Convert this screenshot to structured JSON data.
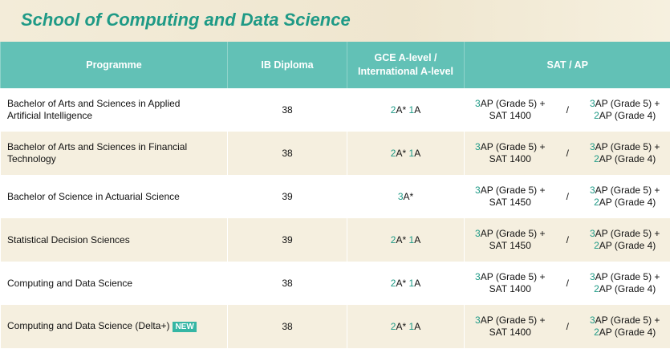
{
  "header": {
    "title": "School of Computing and Data Science"
  },
  "table": {
    "columns": [
      "Programme",
      "IB Diploma",
      "GCE A-level / International A-level",
      "SAT / AP"
    ],
    "rows": [
      {
        "programme": "Bachelor of Arts and Sciences in Applied Artificial Intelligence",
        "ib": "38",
        "gce": [
          {
            "n": "2",
            "g": "A*"
          },
          {
            "n": "1",
            "g": "A"
          }
        ],
        "sat": {
          "left": {
            "n": "3",
            "a": "AP (Grade 5) +",
            "b": "SAT 1400"
          },
          "sep": "/",
          "right": {
            "n1": "3",
            "a": "AP (Grade 5) +",
            "n2": "2",
            "b": "AP (Grade 4)"
          }
        }
      },
      {
        "programme": "Bachelor of Arts and Sciences in Financial Technology",
        "ib": "38",
        "gce": [
          {
            "n": "2",
            "g": "A*"
          },
          {
            "n": "1",
            "g": "A"
          }
        ],
        "sat": {
          "left": {
            "n": "3",
            "a": "AP (Grade 5) +",
            "b": "SAT 1400"
          },
          "sep": "/",
          "right": {
            "n1": "3",
            "a": "AP (Grade 5) +",
            "n2": "2",
            "b": "AP (Grade 4)"
          }
        }
      },
      {
        "programme": "Bachelor of Science in Actuarial Science",
        "ib": "39",
        "gce": [
          {
            "n": "3",
            "g": "A*"
          }
        ],
        "sat": {
          "left": {
            "n": "3",
            "a": "AP (Grade 5) +",
            "b": "SAT 1450"
          },
          "sep": "/",
          "right": {
            "n1": "3",
            "a": "AP (Grade 5) +",
            "n2": "2",
            "b": "AP (Grade 4)"
          }
        }
      },
      {
        "programme": "Statistical Decision Sciences",
        "ib": "39",
        "gce": [
          {
            "n": "2",
            "g": "A*"
          },
          {
            "n": "1",
            "g": "A"
          }
        ],
        "sat": {
          "left": {
            "n": "3",
            "a": "AP (Grade 5) +",
            "b": "SAT 1450"
          },
          "sep": "/",
          "right": {
            "n1": "3",
            "a": "AP (Grade 5) +",
            "n2": "2",
            "b": "AP (Grade 4)"
          }
        }
      },
      {
        "programme": "Computing and Data Science",
        "ib": "38",
        "gce": [
          {
            "n": "2",
            "g": "A*"
          },
          {
            "n": "1",
            "g": "A"
          }
        ],
        "sat": {
          "left": {
            "n": "3",
            "a": "AP (Grade 5) +",
            "b": "SAT 1400"
          },
          "sep": "/",
          "right": {
            "n1": "3",
            "a": "AP (Grade 5) +",
            "n2": "2",
            "b": "AP (Grade 4)"
          }
        }
      },
      {
        "programme": "Computing and Data Science (Delta+)",
        "badge": "NEW",
        "ib": "38",
        "gce": [
          {
            "n": "2",
            "g": "A*"
          },
          {
            "n": "1",
            "g": "A"
          }
        ],
        "sat": {
          "left": {
            "n": "3",
            "a": "AP (Grade 5) +",
            "b": "SAT 1400"
          },
          "sep": "/",
          "right": {
            "n1": "3",
            "a": "AP (Grade 5) +",
            "n2": "2",
            "b": "AP (Grade 4)"
          }
        }
      }
    ]
  }
}
